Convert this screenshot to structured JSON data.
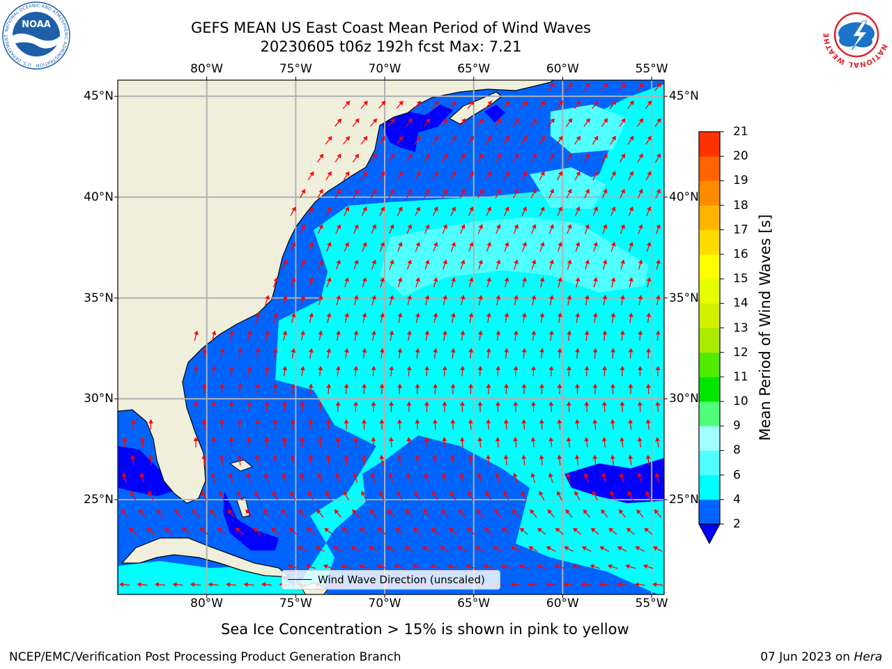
{
  "title": {
    "line1": "GEFS MEAN US East Coast Mean Period of Wind Waves",
    "line2": "20230605 t06z 192h fcst   Max: 7.21"
  },
  "logos": {
    "noaa": {
      "text": "NOAA",
      "ring_text": "NATIONAL OCEANIC AND ATMOSPHERIC ADMINISTRATION · U.S. DEPARTMENT OF COMMERCE",
      "color": "#1f5fa8"
    },
    "nws": {
      "ring_text": "NATIONAL WEATHER SERVICE",
      "color": "#e4202a",
      "inner_color": "#1c74c8"
    }
  },
  "map": {
    "lon_range": [
      -85,
      -54.3
    ],
    "lat_range": [
      20.3,
      45.8
    ],
    "lon_ticks": [
      {
        "value": -80,
        "label": "80°W"
      },
      {
        "value": -75,
        "label": "75°W"
      },
      {
        "value": -70,
        "label": "70°W"
      },
      {
        "value": -65,
        "label": "65°W"
      },
      {
        "value": -60,
        "label": "60°W"
      },
      {
        "value": -55,
        "label": "55°W"
      }
    ],
    "lat_ticks": [
      {
        "value": 45,
        "label": "45°N"
      },
      {
        "value": 40,
        "label": "40°N"
      },
      {
        "value": 35,
        "label": "35°N"
      },
      {
        "value": 30,
        "label": "30°N"
      },
      {
        "value": 25,
        "label": "25°N"
      }
    ],
    "land_color": "#efefdc",
    "gridline_color": "#b0b0b0",
    "arrow_color": "#ff0000",
    "legend": "Wind Wave Direction (unscaled)"
  },
  "colorbar": {
    "label": "Mean Period of Wind Waves [s]",
    "ticks": [
      "2",
      "4",
      "6",
      "8",
      "9",
      "10",
      "11",
      "12",
      "13",
      "14",
      "15",
      "16",
      "17",
      "18",
      "19",
      "20",
      "21"
    ],
    "colors": [
      "#0064ff",
      "#00ffff",
      "#50ffff",
      "#a0ffff",
      "#50ff78",
      "#00e600",
      "#50eb00",
      "#aaeb00",
      "#d2f000",
      "#e6ff00",
      "#ffff00",
      "#ffdc00",
      "#ffb400",
      "#ff8c00",
      "#ff6400",
      "#ff3200",
      "#ff0000"
    ],
    "under_color": "#0000ff"
  },
  "note": "Sea Ice Concentration > 15% is shown in pink to yellow",
  "footer": {
    "left": "NCEP/EMC/Verification Post Processing Product Generation Branch",
    "right_prefix": "07 Jun 2023 on ",
    "right_host": "Hera"
  }
}
